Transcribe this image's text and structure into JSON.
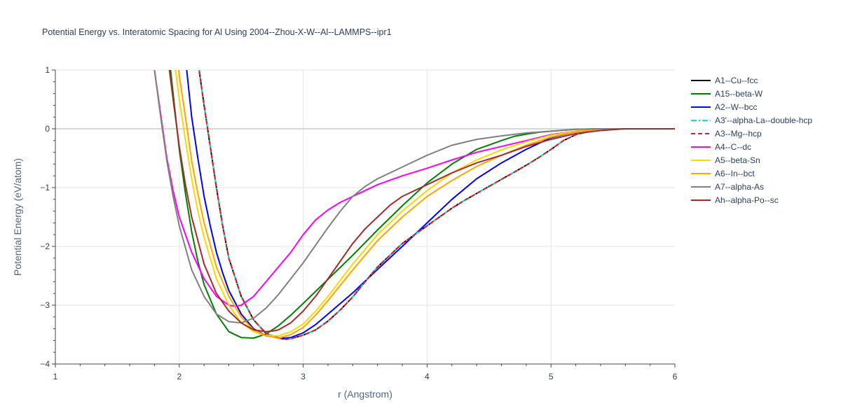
{
  "chart_data": {
    "type": "line",
    "title": "Potential Energy vs. Interatomic Spacing for Al Using 2004--Zhou-X-W--Al--LAMMPS--ipr1",
    "xlabel": "r (Angstrom)",
    "ylabel": "Potential Energy (eV/atom)",
    "xlim": [
      1,
      6
    ],
    "ylim": [
      -4,
      1
    ],
    "xticks": [
      "1",
      "2",
      "3",
      "4",
      "5",
      "6"
    ],
    "yticks": [
      "−4",
      "−3",
      "−2",
      "−1",
      "0",
      "1"
    ],
    "grid": true,
    "legend_position": "right",
    "series": [
      {
        "name": "A1--Cu--fcc",
        "color": "#000000",
        "dash": "solid",
        "x": [
          2.1,
          2.16,
          2.2,
          2.25,
          2.3,
          2.35,
          2.4,
          2.5,
          2.6,
          2.7,
          2.8,
          2.86,
          2.9,
          3.0,
          3.1,
          3.2,
          3.3,
          3.4,
          3.5,
          3.6,
          3.7,
          3.8,
          3.9,
          4.0,
          4.1,
          4.2,
          4.3,
          4.4,
          4.5,
          4.6,
          4.7,
          4.8,
          4.9,
          5.0,
          5.1,
          5.2,
          5.3,
          5.4,
          5.5,
          5.6,
          6.0
        ],
        "y": [
          2.4,
          1.0,
          0.4,
          -0.3,
          -1.0,
          -1.65,
          -2.2,
          -2.85,
          -3.25,
          -3.48,
          -3.56,
          -3.58,
          -3.57,
          -3.51,
          -3.42,
          -3.27,
          -3.08,
          -2.86,
          -2.6,
          -2.35,
          -2.15,
          -1.95,
          -1.8,
          -1.65,
          -1.5,
          -1.35,
          -1.22,
          -1.1,
          -0.98,
          -0.86,
          -0.74,
          -0.62,
          -0.49,
          -0.35,
          -0.2,
          -0.1,
          -0.05,
          -0.02,
          0,
          0,
          0
        ]
      },
      {
        "name": "A15--beta-W",
        "color": "#008000",
        "dash": "solid",
        "x": [
          1.9,
          1.93,
          1.95,
          2.0,
          2.05,
          2.1,
          2.15,
          2.2,
          2.3,
          2.4,
          2.5,
          2.6,
          2.7,
          2.8,
          2.9,
          3.0,
          3.2,
          3.4,
          3.6,
          3.8,
          4.0,
          4.2,
          4.4,
          4.6,
          4.7,
          4.8,
          4.9,
          5.0,
          5.2,
          5.4,
          5.6,
          6.0
        ],
        "y": [
          2.3,
          1.0,
          0.6,
          -0.35,
          -1.1,
          -1.75,
          -2.25,
          -2.65,
          -3.15,
          -3.45,
          -3.55,
          -3.56,
          -3.49,
          -3.35,
          -3.17,
          -2.97,
          -2.56,
          -2.15,
          -1.72,
          -1.31,
          -0.92,
          -0.6,
          -0.35,
          -0.2,
          -0.13,
          -0.09,
          -0.06,
          -0.04,
          -0.01,
          0,
          0,
          0
        ]
      },
      {
        "name": "A2--W--bcc",
        "color": "#0000ff",
        "dash": "solid",
        "x": [
          2.03,
          2.06,
          2.1,
          2.15,
          2.2,
          2.25,
          2.3,
          2.35,
          2.4,
          2.5,
          2.6,
          2.7,
          2.8,
          2.85,
          2.9,
          3.0,
          3.1,
          3.2,
          3.4,
          3.6,
          3.8,
          4.0,
          4.2,
          4.4,
          4.6,
          4.8,
          5.0,
          5.2,
          5.4,
          5.6,
          6.0
        ],
        "y": [
          2.2,
          1.0,
          0.2,
          -0.5,
          -1.15,
          -1.65,
          -2.1,
          -2.45,
          -2.75,
          -3.15,
          -3.4,
          -3.52,
          -3.55,
          -3.56,
          -3.55,
          -3.47,
          -3.33,
          -3.15,
          -2.79,
          -2.39,
          -2.0,
          -1.6,
          -1.2,
          -0.85,
          -0.58,
          -0.35,
          -0.15,
          -0.05,
          -0.01,
          0,
          0
        ]
      },
      {
        "name": "A3'--alpha-La--double-hcp",
        "color": "#00e5ee",
        "dash": "dashdot",
        "x": [
          2.1,
          2.16,
          2.2,
          2.25,
          2.3,
          2.35,
          2.4,
          2.5,
          2.6,
          2.7,
          2.8,
          2.86,
          2.9,
          3.0,
          3.1,
          3.2,
          3.3,
          3.4,
          3.5,
          3.6,
          3.7,
          3.8,
          3.9,
          4.0,
          4.1,
          4.2,
          4.3,
          4.4,
          4.5,
          4.6,
          4.7,
          4.8,
          4.9,
          5.0,
          5.1,
          5.2,
          5.3,
          5.4,
          5.5,
          5.6,
          6.0
        ],
        "y": [
          2.4,
          1.0,
          0.4,
          -0.3,
          -1.0,
          -1.65,
          -2.2,
          -2.85,
          -3.25,
          -3.48,
          -3.56,
          -3.58,
          -3.57,
          -3.51,
          -3.42,
          -3.27,
          -3.08,
          -2.86,
          -2.6,
          -2.35,
          -2.15,
          -1.95,
          -1.8,
          -1.65,
          -1.5,
          -1.35,
          -1.22,
          -1.1,
          -0.98,
          -0.86,
          -0.74,
          -0.62,
          -0.49,
          -0.35,
          -0.2,
          -0.1,
          -0.05,
          -0.02,
          0,
          0,
          0
        ]
      },
      {
        "name": "A3--Mg--hcp",
        "color": "#e41a1c",
        "dash": "dash",
        "x": [
          2.1,
          2.16,
          2.2,
          2.25,
          2.3,
          2.35,
          2.4,
          2.5,
          2.6,
          2.7,
          2.8,
          2.86,
          2.9,
          3.0,
          3.1,
          3.2,
          3.3,
          3.4,
          3.5,
          3.6,
          3.7,
          3.8,
          3.9,
          4.0,
          4.1,
          4.2,
          4.3,
          4.4,
          4.5,
          4.6,
          4.7,
          4.8,
          4.9,
          5.0,
          5.1,
          5.2,
          5.3,
          5.4,
          5.5,
          5.6,
          6.0
        ],
        "y": [
          2.4,
          1.0,
          0.4,
          -0.3,
          -1.0,
          -1.65,
          -2.2,
          -2.85,
          -3.25,
          -3.48,
          -3.56,
          -3.58,
          -3.57,
          -3.51,
          -3.42,
          -3.27,
          -3.08,
          -2.86,
          -2.6,
          -2.35,
          -2.15,
          -1.95,
          -1.8,
          -1.65,
          -1.5,
          -1.35,
          -1.22,
          -1.1,
          -0.98,
          -0.86,
          -0.74,
          -0.62,
          -0.49,
          -0.35,
          -0.2,
          -0.1,
          -0.05,
          -0.02,
          0,
          0,
          0
        ]
      },
      {
        "name": "A4--C--dc",
        "color": "#ff00ff",
        "dash": "solid",
        "x": [
          1.75,
          1.8,
          1.85,
          1.9,
          1.95,
          2.0,
          2.1,
          2.2,
          2.3,
          2.4,
          2.45,
          2.5,
          2.6,
          2.7,
          2.8,
          2.9,
          3.0,
          3.1,
          3.2,
          3.3,
          3.4,
          3.6,
          3.8,
          4.0,
          4.2,
          4.4,
          4.6,
          4.8,
          5.0,
          5.2,
          5.4,
          5.6,
          6.0
        ],
        "y": [
          1.7,
          1.0,
          0.25,
          -0.5,
          -1.05,
          -1.5,
          -2.1,
          -2.55,
          -2.85,
          -3.0,
          -3.02,
          -3.0,
          -2.85,
          -2.6,
          -2.35,
          -2.1,
          -1.8,
          -1.55,
          -1.38,
          -1.25,
          -1.15,
          -0.95,
          -0.8,
          -0.67,
          -0.53,
          -0.4,
          -0.3,
          -0.2,
          -0.1,
          -0.04,
          -0.01,
          0,
          0
        ]
      },
      {
        "name": "A5--beta-Sn",
        "color": "#ffd700",
        "dash": "solid",
        "x": [
          1.93,
          1.97,
          2.0,
          2.05,
          2.1,
          2.15,
          2.2,
          2.3,
          2.4,
          2.5,
          2.6,
          2.7,
          2.8,
          2.9,
          3.0,
          3.1,
          3.2,
          3.4,
          3.6,
          3.8,
          4.0,
          4.2,
          4.4,
          4.6,
          4.8,
          5.0,
          5.2,
          5.4,
          5.6,
          6.0
        ],
        "y": [
          2.2,
          1.0,
          0.5,
          -0.2,
          -0.85,
          -1.4,
          -1.85,
          -2.55,
          -3.0,
          -3.3,
          -3.45,
          -3.52,
          -3.52,
          -3.45,
          -3.32,
          -3.1,
          -2.85,
          -2.3,
          -1.8,
          -1.4,
          -1.05,
          -0.75,
          -0.53,
          -0.36,
          -0.22,
          -0.11,
          -0.04,
          -0.01,
          0,
          0
        ]
      },
      {
        "name": "A6--In--bct",
        "color": "#ffa500",
        "dash": "solid",
        "x": [
          1.95,
          2.0,
          2.05,
          2.1,
          2.15,
          2.2,
          2.3,
          2.4,
          2.5,
          2.6,
          2.7,
          2.8,
          2.9,
          3.0,
          3.1,
          3.2,
          3.4,
          3.6,
          3.8,
          4.0,
          4.2,
          4.4,
          4.6,
          4.8,
          5.0,
          5.2,
          5.4,
          5.6,
          6.0
        ],
        "y": [
          2.0,
          0.9,
          0.2,
          -0.55,
          -1.1,
          -1.6,
          -2.35,
          -2.85,
          -3.2,
          -3.42,
          -3.52,
          -3.56,
          -3.5,
          -3.38,
          -3.17,
          -2.92,
          -2.4,
          -1.9,
          -1.5,
          -1.15,
          -0.88,
          -0.64,
          -0.45,
          -0.28,
          -0.14,
          -0.05,
          -0.01,
          0,
          0
        ]
      },
      {
        "name": "A7--alpha-As",
        "color": "#808080",
        "dash": "solid",
        "x": [
          1.75,
          1.8,
          1.85,
          1.9,
          1.95,
          2.0,
          2.1,
          2.2,
          2.3,
          2.4,
          2.5,
          2.6,
          2.7,
          2.8,
          2.9,
          3.0,
          3.1,
          3.2,
          3.3,
          3.4,
          3.5,
          3.6,
          3.8,
          4.0,
          4.2,
          4.4,
          4.6,
          4.8,
          5.0,
          5.2,
          5.4,
          5.6,
          6.0
        ],
        "y": [
          1.8,
          1.0,
          0.2,
          -0.55,
          -1.15,
          -1.65,
          -2.4,
          -2.85,
          -3.15,
          -3.28,
          -3.3,
          -3.22,
          -3.05,
          -2.82,
          -2.55,
          -2.28,
          -1.98,
          -1.68,
          -1.4,
          -1.15,
          -0.98,
          -0.85,
          -0.65,
          -0.45,
          -0.28,
          -0.18,
          -0.12,
          -0.07,
          -0.04,
          -0.01,
          0,
          0,
          0
        ]
      },
      {
        "name": "Ah--alpha-Po--sc",
        "color": "#a52a2a",
        "dash": "solid",
        "x": [
          1.88,
          1.92,
          1.95,
          2.0,
          2.05,
          2.1,
          2.2,
          2.3,
          2.4,
          2.5,
          2.6,
          2.7,
          2.75,
          2.8,
          2.9,
          3.0,
          3.1,
          3.2,
          3.3,
          3.4,
          3.5,
          3.6,
          3.7,
          3.8,
          4.0,
          4.2,
          4.4,
          4.6,
          4.8,
          5.0,
          5.2,
          5.4,
          5.6,
          6.0
        ],
        "y": [
          2.2,
          1.0,
          0.5,
          -0.3,
          -0.95,
          -1.5,
          -2.3,
          -2.8,
          -3.1,
          -3.3,
          -3.42,
          -3.45,
          -3.44,
          -3.42,
          -3.3,
          -3.1,
          -2.85,
          -2.55,
          -2.25,
          -1.95,
          -1.7,
          -1.5,
          -1.3,
          -1.15,
          -0.95,
          -0.75,
          -0.58,
          -0.45,
          -0.3,
          -0.18,
          -0.08,
          -0.03,
          0,
          0
        ]
      }
    ]
  }
}
